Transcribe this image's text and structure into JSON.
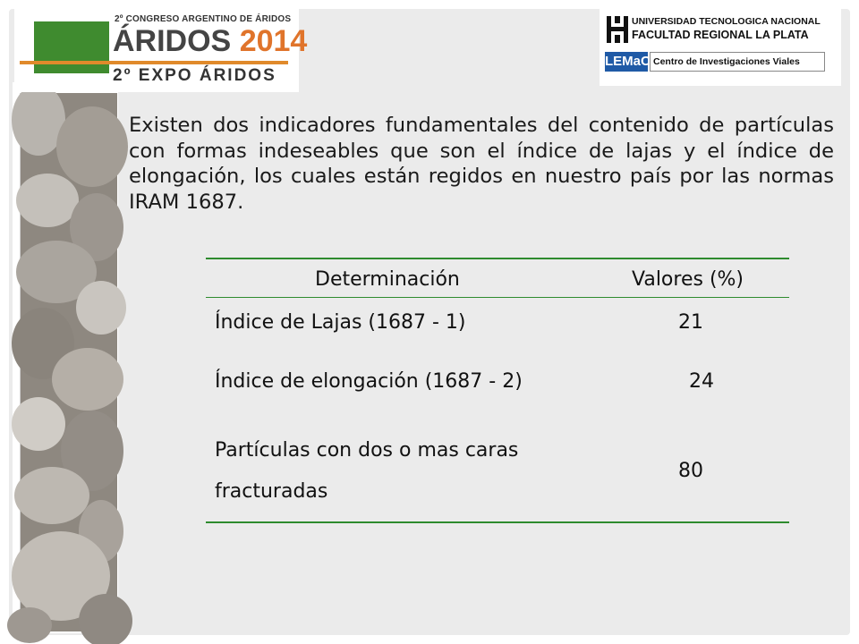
{
  "logos": {
    "aridos": {
      "congress_line": "2º CONGRESO ARGENTINO DE ÁRIDOS",
      "title_word": "ÁRIDOS",
      "title_year": "2014",
      "expo_line": "2º EXPO ÁRIDOS",
      "colors": {
        "green": "#3f8b2f",
        "orange": "#e08a2b"
      }
    },
    "utn": {
      "line1": "UNIVERSIDAD TECNOLOGICA NACIONAL",
      "line2": "FACULTAD REGIONAL LA PLATA",
      "lemac_badge": "LEMaC",
      "lemac_text": "Centro de Investigaciones Viales",
      "colors": {
        "lemac": "#1f5aa6"
      }
    }
  },
  "intro_text": "Existen dos indicadores fundamentales del contenido de partículas con formas indeseables que son el índice de lajas y el índice de elongación, los cuales están regidos en nuestro país por las normas IRAM 1687.",
  "table": {
    "headers": [
      "Determinación",
      "Valores (%)"
    ],
    "rows": [
      {
        "label": "Índice de Lajas (1687 - 1)",
        "value": "21"
      },
      {
        "label": "Índice de elongación (1687 - 2)",
        "value": "24"
      },
      {
        "label_line1": "Partículas con dos o mas caras",
        "label_line2": "fracturadas",
        "value": "80"
      }
    ],
    "rule_color": "#2e8b2e"
  }
}
